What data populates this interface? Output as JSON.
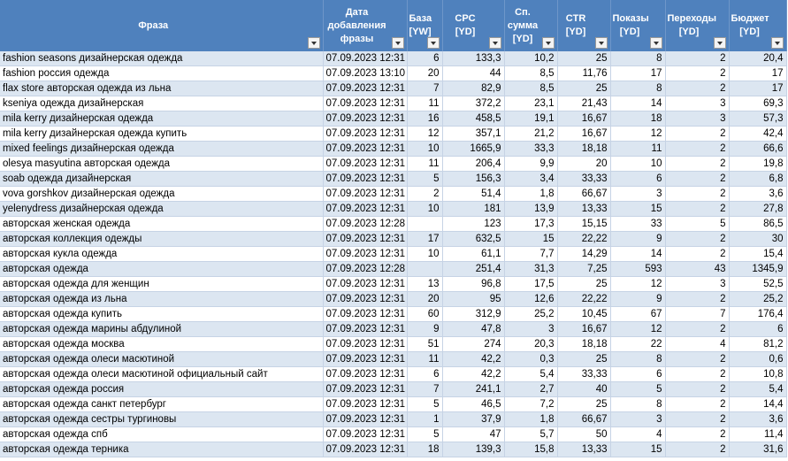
{
  "table": {
    "header": [
      "Фраза",
      "Дата добавления фразы",
      "База [YW]",
      "CPC [YD]",
      "Сп. сумма [YD]",
      "CTR [YD]",
      "Показы [YD]",
      "Переходы [YD]",
      "Бюджет [YD]"
    ],
    "rows": [
      [
        "fashion seasons дизайнерская одежда",
        "07.09.2023 12:31",
        "6",
        "133,3",
        "10,2",
        "25",
        "8",
        "2",
        "20,4"
      ],
      [
        "fashion россия одежда",
        "07.09.2023 13:10",
        "20",
        "44",
        "8,5",
        "11,76",
        "17",
        "2",
        "17"
      ],
      [
        "flax store авторская одежда из льна",
        "07.09.2023 12:31",
        "7",
        "82,9",
        "8,5",
        "25",
        "8",
        "2",
        "17"
      ],
      [
        "kseniya одежда дизайнерская",
        "07.09.2023 12:31",
        "11",
        "372,2",
        "23,1",
        "21,43",
        "14",
        "3",
        "69,3"
      ],
      [
        "mila kerry дизайнерская одежда",
        "07.09.2023 12:31",
        "16",
        "458,5",
        "19,1",
        "16,67",
        "18",
        "3",
        "57,3"
      ],
      [
        "mila kerry дизайнерская одежда купить",
        "07.09.2023 12:31",
        "12",
        "357,1",
        "21,2",
        "16,67",
        "12",
        "2",
        "42,4"
      ],
      [
        "mixed feelings дизайнерская одежда",
        "07.09.2023 12:31",
        "10",
        "1665,9",
        "33,3",
        "18,18",
        "11",
        "2",
        "66,6"
      ],
      [
        "olesya masyutina авторская одежда",
        "07.09.2023 12:31",
        "11",
        "206,4",
        "9,9",
        "20",
        "10",
        "2",
        "19,8"
      ],
      [
        "soab одежда дизайнерская",
        "07.09.2023 12:31",
        "5",
        "156,3",
        "3,4",
        "33,33",
        "6",
        "2",
        "6,8"
      ],
      [
        "vova gorshkov дизайнерская одежда",
        "07.09.2023 12:31",
        "2",
        "51,4",
        "1,8",
        "66,67",
        "3",
        "2",
        "3,6"
      ],
      [
        "yelenydress дизайнерская одежда",
        "07.09.2023 12:31",
        "10",
        "181",
        "13,9",
        "13,33",
        "15",
        "2",
        "27,8"
      ],
      [
        "авторская женская одежда",
        "07.09.2023 12:28",
        null,
        "123",
        "17,3",
        "15,15",
        "33",
        "5",
        "86,5"
      ],
      [
        "авторская коллекция одежды",
        "07.09.2023 12:31",
        "17",
        "632,5",
        "15",
        "22,22",
        "9",
        "2",
        "30"
      ],
      [
        "авторская кукла одежда",
        "07.09.2023 12:31",
        "10",
        "61,1",
        "7,7",
        "14,29",
        "14",
        "2",
        "15,4"
      ],
      [
        "авторская одежда",
        "07.09.2023 12:28",
        null,
        "251,4",
        "31,3",
        "7,25",
        "593",
        "43",
        "1345,9"
      ],
      [
        "авторская одежда для женщин",
        "07.09.2023 12:31",
        "13",
        "96,8",
        "17,5",
        "25",
        "12",
        "3",
        "52,5"
      ],
      [
        "авторская одежда из льна",
        "07.09.2023 12:31",
        "20",
        "95",
        "12,6",
        "22,22",
        "9",
        "2",
        "25,2"
      ],
      [
        "авторская одежда купить",
        "07.09.2023 12:31",
        "60",
        "312,9",
        "25,2",
        "10,45",
        "67",
        "7",
        "176,4"
      ],
      [
        "авторская одежда марины абдулиной",
        "07.09.2023 12:31",
        "9",
        "47,8",
        "3",
        "16,67",
        "12",
        "2",
        "6"
      ],
      [
        "авторская одежда москва",
        "07.09.2023 12:31",
        "51",
        "274",
        "20,3",
        "18,18",
        "22",
        "4",
        "81,2"
      ],
      [
        "авторская одежда олеси масютиной",
        "07.09.2023 12:31",
        "11",
        "42,2",
        "0,3",
        "25",
        "8",
        "2",
        "0,6"
      ],
      [
        "авторская одежда олеси масютиной официальный сайт",
        "07.09.2023 12:31",
        "6",
        "42,2",
        "5,4",
        "33,33",
        "6",
        "2",
        "10,8"
      ],
      [
        "авторская одежда россия",
        "07.09.2023 12:31",
        "7",
        "241,1",
        "2,7",
        "40",
        "5",
        "2",
        "5,4"
      ],
      [
        "авторская одежда санкт петербург",
        "07.09.2023 12:31",
        "5",
        "46,5",
        "7,2",
        "25",
        "8",
        "2",
        "14,4"
      ],
      [
        "авторская одежда сестры тургиновы",
        "07.09.2023 12:31",
        "1",
        "37,9",
        "1,8",
        "66,67",
        "3",
        "2",
        "3,6"
      ],
      [
        "авторская одежда спб",
        "07.09.2023 12:31",
        "5",
        "47",
        "5,7",
        "50",
        "4",
        "2",
        "11,4"
      ],
      [
        "авторская одежда терника",
        "07.09.2023 12:31",
        "18",
        "139,3",
        "15,8",
        "13,33",
        "15",
        "2",
        "31,6"
      ]
    ]
  }
}
